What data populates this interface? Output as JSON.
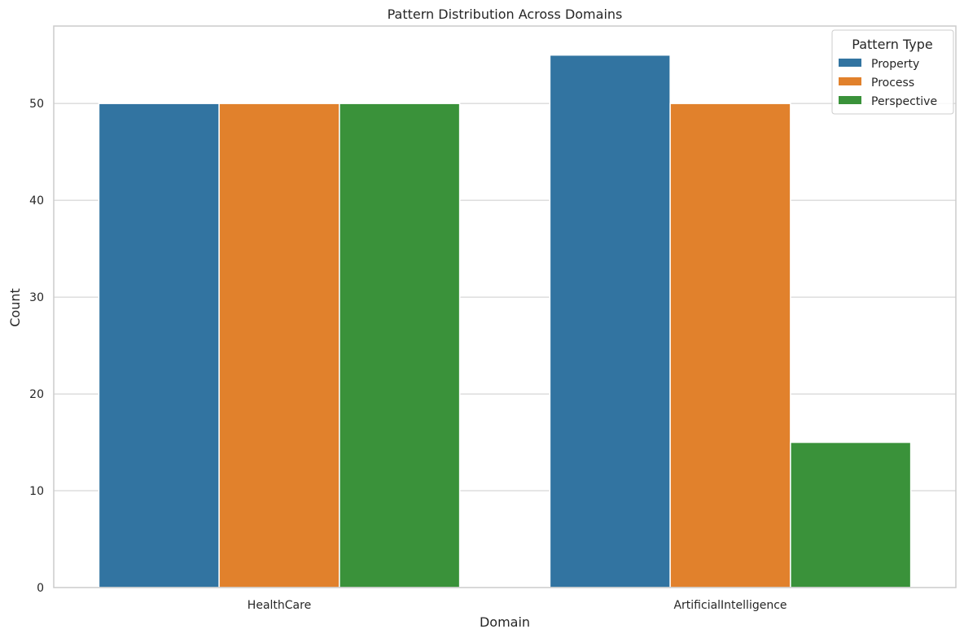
{
  "chart_data": {
    "type": "bar",
    "title": "Pattern Distribution Across Domains",
    "xlabel": "Domain",
    "ylabel": "Count",
    "categories": [
      "HealthCare",
      "ArtificialIntelligence"
    ],
    "series": [
      {
        "name": "Property",
        "values": [
          50,
          55
        ],
        "color": "#3274a1"
      },
      {
        "name": "Process",
        "values": [
          50,
          50
        ],
        "color": "#e1812c"
      },
      {
        "name": "Perspective",
        "values": [
          50,
          15
        ],
        "color": "#3a923a"
      }
    ],
    "ylim": [
      0,
      58
    ],
    "yticks": [
      0,
      10,
      20,
      30,
      40,
      50
    ],
    "grid": true,
    "legend": {
      "title": "Pattern Type",
      "placement": "top-right"
    }
  }
}
